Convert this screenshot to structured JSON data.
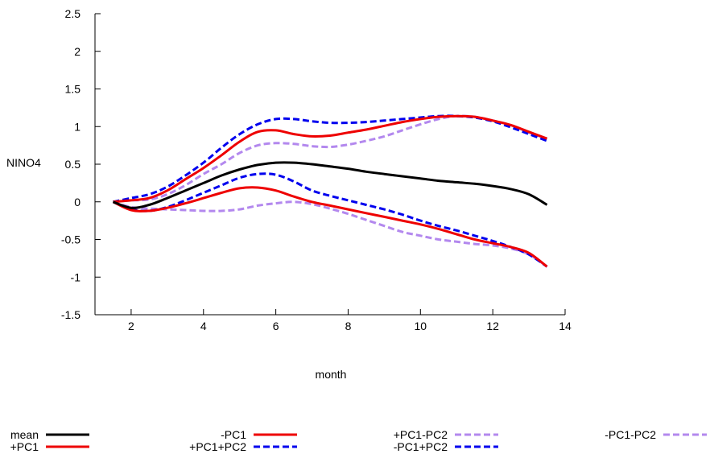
{
  "chart_data": {
    "type": "line",
    "title": "",
    "xlabel": "month",
    "ylabel": "NINO4",
    "xlim": [
      1,
      14
    ],
    "ylim": [
      -1.5,
      2.5
    ],
    "xticks": [
      2,
      4,
      6,
      8,
      10,
      12,
      14
    ],
    "yticks": [
      -1.5,
      -1,
      -0.5,
      0,
      0.5,
      1,
      1.5,
      2,
      2.5
    ],
    "xtick_labels": [
      "2",
      "4",
      "6",
      "8",
      "10",
      "12",
      "14"
    ],
    "ytick_labels": [
      "-1.5",
      "-1",
      "-0.5",
      "0",
      "0.5",
      "1",
      "1.5",
      "2",
      "2.5"
    ],
    "grid": false,
    "legend_position": "bottom",
    "x": [
      1.5,
      2,
      2.5,
      3,
      3.5,
      4,
      4.5,
      5,
      5.5,
      6,
      6.5,
      7,
      7.5,
      8,
      8.5,
      9,
      9.5,
      10,
      10.5,
      11,
      11.5,
      12,
      12.5,
      13,
      13.5
    ],
    "series": [
      {
        "name": "mean",
        "color": "#000000",
        "dash": false,
        "values": [
          0.0,
          -0.08,
          -0.04,
          0.05,
          0.15,
          0.25,
          0.35,
          0.43,
          0.49,
          0.52,
          0.52,
          0.5,
          0.47,
          0.44,
          0.4,
          0.37,
          0.34,
          0.31,
          0.28,
          0.26,
          0.24,
          0.21,
          0.17,
          0.1,
          -0.04
        ]
      },
      {
        "name": "+PC1",
        "color": "#ee0000",
        "dash": false,
        "values": [
          0.0,
          0.02,
          0.05,
          0.15,
          0.3,
          0.45,
          0.62,
          0.8,
          0.93,
          0.95,
          0.9,
          0.87,
          0.88,
          0.92,
          0.96,
          1.01,
          1.06,
          1.1,
          1.13,
          1.14,
          1.13,
          1.08,
          1.02,
          0.93,
          0.84
        ]
      },
      {
        "name": "-PC1",
        "color": "#ee0000",
        "dash": false,
        "values": [
          0.0,
          -0.11,
          -0.12,
          -0.08,
          -0.02,
          0.05,
          0.12,
          0.18,
          0.19,
          0.15,
          0.07,
          0.0,
          -0.05,
          -0.1,
          -0.15,
          -0.2,
          -0.25,
          -0.3,
          -0.36,
          -0.43,
          -0.5,
          -0.55,
          -0.6,
          -0.68,
          -0.86
        ]
      },
      {
        "name": "+PC1+PC2",
        "color": "#0000ee",
        "dash": true,
        "values": [
          0.0,
          0.05,
          0.1,
          0.2,
          0.35,
          0.52,
          0.72,
          0.9,
          1.03,
          1.1,
          1.1,
          1.07,
          1.05,
          1.05,
          1.06,
          1.08,
          1.1,
          1.12,
          1.14,
          1.14,
          1.12,
          1.07,
          0.99,
          0.9,
          0.81
        ]
      },
      {
        "name": "-PC1+PC2",
        "color": "#0000ee",
        "dash": true,
        "values": [
          0.0,
          -0.1,
          -0.12,
          -0.07,
          0.02,
          0.12,
          0.22,
          0.32,
          0.37,
          0.36,
          0.27,
          0.15,
          0.08,
          0.02,
          -0.04,
          -0.1,
          -0.17,
          -0.25,
          -0.32,
          -0.38,
          -0.45,
          -0.52,
          -0.6,
          -0.7,
          -0.86
        ]
      },
      {
        "name": "+PC1-PC2",
        "color": "#b388ee",
        "dash": true,
        "values": [
          0.0,
          0.02,
          0.03,
          0.1,
          0.22,
          0.37,
          0.5,
          0.65,
          0.75,
          0.78,
          0.77,
          0.74,
          0.73,
          0.76,
          0.81,
          0.87,
          0.95,
          1.03,
          1.1,
          1.14,
          1.13,
          1.08,
          1.02,
          0.92,
          0.84
        ]
      },
      {
        "name": "-PC1-PC2",
        "color": "#b388ee",
        "dash": true,
        "values": [
          0.0,
          -0.07,
          -0.09,
          -0.1,
          -0.11,
          -0.12,
          -0.12,
          -0.1,
          -0.05,
          -0.02,
          0.0,
          -0.03,
          -0.09,
          -0.16,
          -0.24,
          -0.32,
          -0.4,
          -0.45,
          -0.5,
          -0.53,
          -0.56,
          -0.58,
          -0.62,
          -0.7,
          -0.86
        ]
      }
    ],
    "legend": [
      {
        "label": "mean",
        "series": 0
      },
      {
        "label": "-PC1",
        "series": 2
      },
      {
        "label": "+PC1-PC2",
        "series": 5
      },
      {
        "label": "-PC1-PC2",
        "series": 6
      },
      {
        "label": "+PC1",
        "series": 1
      },
      {
        "label": "+PC1+PC2",
        "series": 3
      },
      {
        "label": "-PC1+PC2",
        "series": 4
      }
    ]
  }
}
